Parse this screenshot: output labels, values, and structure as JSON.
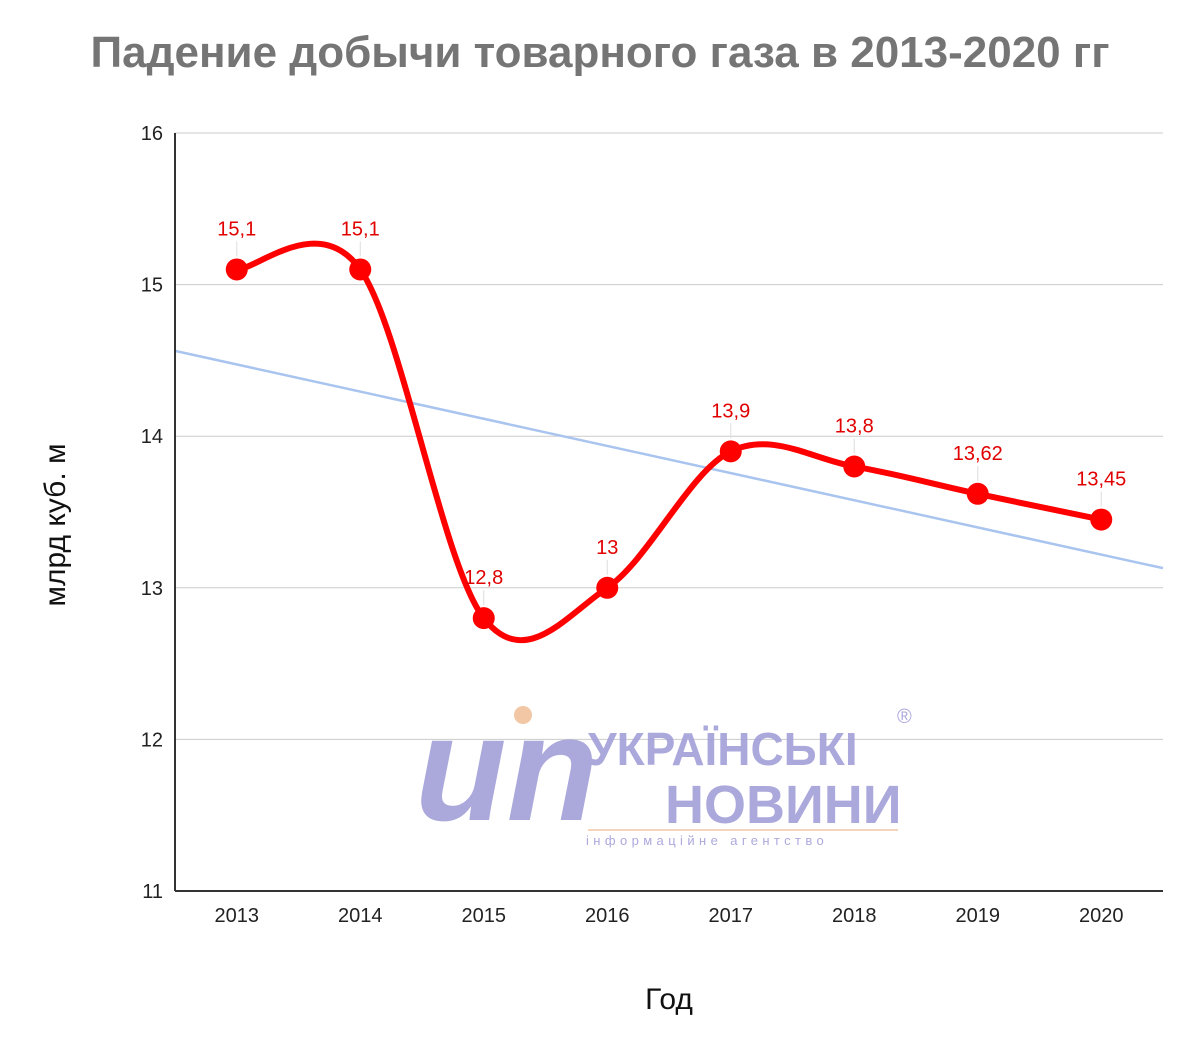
{
  "chart_data": {
    "type": "line",
    "title": "Падение добычи товарного газа в 2013-2020 гг",
    "xlabel": "Год",
    "ylabel": "млрд куб. м",
    "categories": [
      "2013",
      "2014",
      "2015",
      "2016",
      "2017",
      "2018",
      "2019",
      "2020"
    ],
    "series": [
      {
        "values": [
          15.1,
          15.1,
          12.8,
          13,
          13.9,
          13.8,
          13.62,
          13.45
        ],
        "data_labels": [
          "15,1",
          "15,1",
          "12,8",
          "13",
          "13,9",
          "13,8",
          "13,62",
          "13,45"
        ],
        "color": "#ff0000",
        "smooth": true,
        "markers": true
      }
    ],
    "trendline": {
      "type": "linear",
      "color": "#a9c4ef"
    },
    "ylim": [
      11,
      16
    ],
    "yticks": [
      "11",
      "12",
      "13",
      "14",
      "15",
      "16"
    ],
    "grid": true,
    "legend": "none"
  },
  "watermark": {
    "line1": "УКРАЇНСЬКІ",
    "line2": "НОВИНИ",
    "tagline": "інформаційне агентство",
    "logo_text": "un",
    "registered": "®",
    "color": "#a39fd9"
  }
}
